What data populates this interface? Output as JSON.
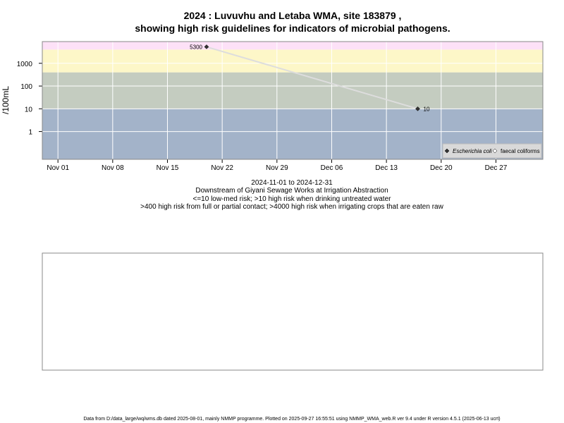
{
  "chart_data": {
    "type": "line",
    "title": [
      "2024 : Luvuvhu and Letaba WMA, site 183879 ,",
      "showing high risk guidelines for indicators of microbial pathogens."
    ],
    "y_label": "/100mL",
    "notes": [
      "2024-11-01 to 2024-12-31",
      "Downstream of Giyani Sewage Works at Irrigation Abstraction",
      "<=10 low-med risk; >10 high risk when drinking untreated water",
      ">400 high risk from full or partial contact; >4000 high risk when irrigating crops that are eaten raw"
    ],
    "footer": "Data from D:/data_large/wq/wms.db dated 2025-08-01, mainly NMMP programme. Plotted on 2025-09-27 16:55:51 using NMMP_WMA_web.R ver 9.4 under R version 4.5.1 (2025-06-13 ucrt)",
    "x": [
      "2024-11-20",
      "2024-12-17"
    ],
    "series": [
      {
        "name": "Escherichia coli",
        "color": "#333333",
        "line_color": "#dddddd",
        "values": [
          5300,
          10
        ]
      },
      {
        "name": "faecal coliforms",
        "color": "#ffffff",
        "values": [
          null,
          null
        ]
      }
    ],
    "xlim": [
      "2024-10-30",
      "2025-01-02"
    ],
    "xticks": [
      {
        "value": "2024-11-01",
        "label": "Nov 01"
      },
      {
        "value": "2024-11-08",
        "label": "Nov 08"
      },
      {
        "value": "2024-11-15",
        "label": "Nov 15"
      },
      {
        "value": "2024-11-22",
        "label": "Nov 22"
      },
      {
        "value": "2024-11-29",
        "label": "Nov 29"
      },
      {
        "value": "2024-12-06",
        "label": "Dec 06"
      },
      {
        "value": "2024-12-13",
        "label": "Dec 13"
      },
      {
        "value": "2024-12-20",
        "label": "Dec 20"
      },
      {
        "value": "2024-12-27",
        "label": "Dec 27"
      }
    ],
    "ylim": [
      0.06,
      9000
    ],
    "yticks": [
      1,
      10,
      100,
      1000
    ],
    "log_y": true,
    "grid": true,
    "band_breaks": [
      10,
      400,
      4000
    ],
    "band_colors": [
      "#a3b3c9",
      "#c4ccc0",
      "#fdf7c8",
      "#fde1f7"
    ],
    "legend": "bottom-right"
  }
}
